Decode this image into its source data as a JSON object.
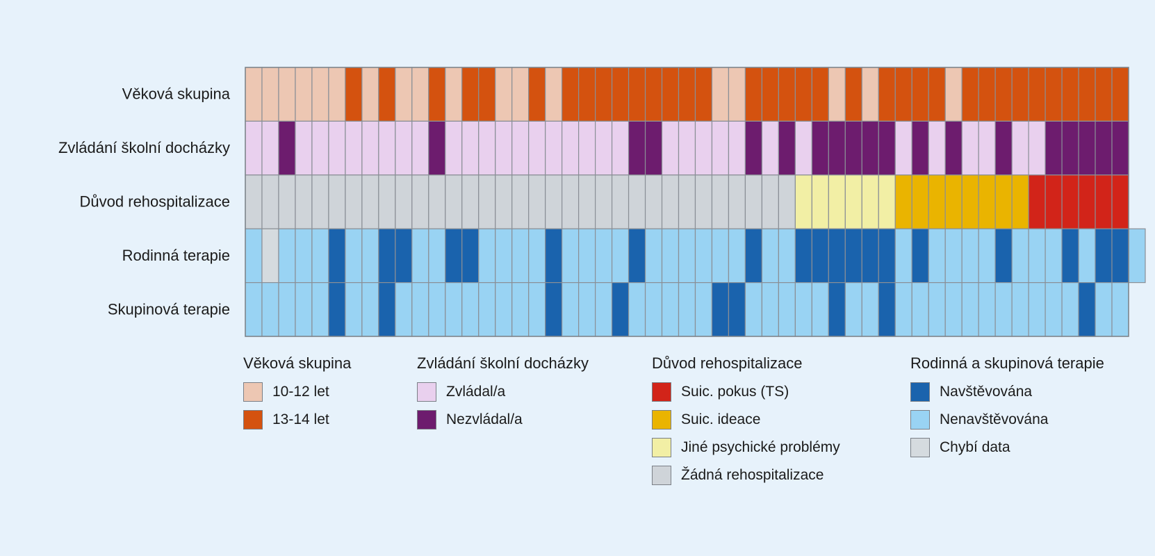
{
  "chart_data": {
    "type": "heatmap",
    "rows": [
      {
        "label": "Věková skupina",
        "legend_group": 0,
        "cells": [
          "10-12 let",
          "10-12 let",
          "10-12 let",
          "10-12 let",
          "10-12 let",
          "10-12 let",
          "13-14 let",
          "10-12 let",
          "13-14 let",
          "10-12 let",
          "10-12 let",
          "13-14 let",
          "10-12 let",
          "13-14 let",
          "13-14 let",
          "10-12 let",
          "10-12 let",
          "13-14 let",
          "10-12 let",
          "13-14 let",
          "13-14 let",
          "13-14 let",
          "13-14 let",
          "13-14 let",
          "13-14 let",
          "13-14 let",
          "13-14 let",
          "13-14 let",
          "10-12 let",
          "10-12 let",
          "13-14 let",
          "13-14 let",
          "13-14 let",
          "13-14 let",
          "13-14 let",
          "10-12 let",
          "13-14 let",
          "10-12 let",
          "13-14 let",
          "13-14 let",
          "13-14 let",
          "13-14 let",
          "10-12 let",
          "13-14 let",
          "13-14 let",
          "13-14 let",
          "13-14 let",
          "13-14 let",
          "13-14 let",
          "13-14 let",
          "13-14 let",
          "13-14 let",
          "13-14 let"
        ]
      },
      {
        "label": "Zvládání školní docházky",
        "legend_group": 1,
        "cells": [
          "Zvládal/a",
          "Zvládal/a",
          "Nezvládal/a",
          "Zvládal/a",
          "Zvládal/a",
          "Zvládal/a",
          "Zvládal/a",
          "Zvládal/a",
          "Zvládal/a",
          "Zvládal/a",
          "Zvládal/a",
          "Nezvládal/a",
          "Zvládal/a",
          "Zvládal/a",
          "Zvládal/a",
          "Zvládal/a",
          "Zvládal/a",
          "Zvládal/a",
          "Zvládal/a",
          "Zvládal/a",
          "Zvládal/a",
          "Zvládal/a",
          "Zvládal/a",
          "Nezvládal/a",
          "Nezvládal/a",
          "Zvládal/a",
          "Zvládal/a",
          "Zvládal/a",
          "Zvládal/a",
          "Zvládal/a",
          "Nezvládal/a",
          "Zvládal/a",
          "Nezvládal/a",
          "Zvládal/a",
          "Nezvládal/a",
          "Nezvládal/a",
          "Nezvládal/a",
          "Nezvládal/a",
          "Nezvládal/a",
          "Zvládal/a",
          "Nezvládal/a",
          "Zvládal/a",
          "Nezvládal/a",
          "Zvládal/a",
          "Zvládal/a",
          "Nezvládal/a",
          "Zvládal/a",
          "Zvládal/a",
          "Nezvládal/a",
          "Nezvládal/a",
          "Nezvládal/a",
          "Nezvládal/a",
          "Nezvládal/a"
        ]
      },
      {
        "label": "Důvod rehospitalizace",
        "legend_group": 2,
        "cells": [
          "Žádná rehospitalizace",
          "Žádná rehospitalizace",
          "Žádná rehospitalizace",
          "Žádná rehospitalizace",
          "Žádná rehospitalizace",
          "Žádná rehospitalizace",
          "Žádná rehospitalizace",
          "Žádná rehospitalizace",
          "Žádná rehospitalizace",
          "Žádná rehospitalizace",
          "Žádná rehospitalizace",
          "Žádná rehospitalizace",
          "Žádná rehospitalizace",
          "Žádná rehospitalizace",
          "Žádná rehospitalizace",
          "Žádná rehospitalizace",
          "Žádná rehospitalizace",
          "Žádná rehospitalizace",
          "Žádná rehospitalizace",
          "Žádná rehospitalizace",
          "Žádná rehospitalizace",
          "Žádná rehospitalizace",
          "Žádná rehospitalizace",
          "Žádná rehospitalizace",
          "Žádná rehospitalizace",
          "Žádná rehospitalizace",
          "Žádná rehospitalizace",
          "Žádná rehospitalizace",
          "Žádná rehospitalizace",
          "Žádná rehospitalizace",
          "Žádná rehospitalizace",
          "Žádná rehospitalizace",
          "Žádná rehospitalizace",
          "Jiné psychické problémy",
          "Jiné psychické problémy",
          "Jiné psychické problémy",
          "Jiné psychické problémy",
          "Jiné psychické problémy",
          "Jiné psychické problémy",
          "Suic. ideace",
          "Suic. ideace",
          "Suic. ideace",
          "Suic. ideace",
          "Suic. ideace",
          "Suic. ideace",
          "Suic. ideace",
          "Suic. ideace",
          "Suic. pokus (TS)",
          "Suic. pokus (TS)",
          "Suic. pokus (TS)",
          "Suic. pokus (TS)",
          "Suic. pokus (TS)",
          "Suic. pokus (TS)"
        ]
      },
      {
        "label": "Rodinná terapie",
        "legend_group": 3,
        "cells": [
          "Nenavštěvována",
          "Chybí data",
          "Nenavštěvována",
          "Nenavštěvována",
          "Nenavštěvována",
          "Navštěvována",
          "Nenavštěvována",
          "Nenavštěvována",
          "Navštěvována",
          "Navštěvována",
          "Nenavštěvována",
          "Nenavštěvována",
          "Navštěvována",
          "Navštěvována",
          "Nenavštěvována",
          "Nenavštěvována",
          "Nenavštěvována",
          "Nenavštěvována",
          "Navštěvována",
          "Nenavštěvována",
          "Nenavštěvována",
          "Nenavštěvována",
          "Nenavštěvována",
          "Navštěvována",
          "Nenavštěvována",
          "Nenavštěvována",
          "Nenavštěvována",
          "Nenavštěvována",
          "Nenavštěvována",
          "Nenavštěvována",
          "Navštěvována",
          "Nenavštěvována",
          "Nenavštěvována",
          "Navštěvována",
          "Navštěvována",
          "Navštěvována",
          "Navštěvována",
          "Navštěvována",
          "Navštěvována",
          "Nenavštěvována",
          "Navštěvována",
          "Nenavštěvována",
          "Nenavštěvována",
          "Nenavštěvována",
          "Nenavštěvována",
          "Navštěvována",
          "Nenavštěvována",
          "Nenavštěvována",
          "Nenavštěvována",
          "Navštěvována",
          "Nenavštěvována",
          "Navštěvována",
          "Navštěvována",
          "Nenavštěvována"
        ]
      },
      {
        "label": "Skupinová terapie",
        "legend_group": 3,
        "cells": [
          "Nenavštěvována",
          "Nenavštěvována",
          "Nenavštěvována",
          "Nenavštěvována",
          "Nenavštěvována",
          "Navštěvována",
          "Nenavštěvována",
          "Nenavštěvována",
          "Navštěvována",
          "Nenavštěvována",
          "Nenavštěvována",
          "Nenavštěvována",
          "Nenavštěvována",
          "Nenavštěvována",
          "Nenavštěvována",
          "Nenavštěvována",
          "Nenavštěvována",
          "Nenavštěvována",
          "Navštěvována",
          "Nenavštěvována",
          "Nenavštěvována",
          "Nenavštěvována",
          "Navštěvována",
          "Nenavštěvována",
          "Nenavštěvována",
          "Nenavštěvována",
          "Nenavštěvována",
          "Nenavštěvována",
          "Navštěvována",
          "Navštěvována",
          "Nenavštěvována",
          "Nenavštěvována",
          "Nenavštěvována",
          "Nenavštěvována",
          "Nenavštěvována",
          "Navštěvována",
          "Nenavštěvována",
          "Nenavštěvována",
          "Navštěvována",
          "Nenavštěvována",
          "Nenavštěvována",
          "Nenavštěvována",
          "Nenavštěvována",
          "Nenavštěvována",
          "Nenavštěvována",
          "Nenavštěvována",
          "Nenavštěvována",
          "Nenavštěvována",
          "Nenavštěvována",
          "Nenavštěvována",
          "Navštěvována",
          "Nenavštěvována",
          "Nenavštěvována"
        ]
      }
    ],
    "legend": [
      {
        "title": "Věková skupina",
        "items": [
          {
            "label": "10-12 let",
            "color": "#edc7b3"
          },
          {
            "label": "13-14 let",
            "color": "#d4520f"
          }
        ]
      },
      {
        "title": "Zvládání školní docházky",
        "items": [
          {
            "label": "Zvládal/a",
            "color": "#e9d0ee"
          },
          {
            "label": "Nezvládal/a",
            "color": "#6d1c6e"
          }
        ]
      },
      {
        "title": "Důvod rehospitalizace",
        "items": [
          {
            "label": "Suic. pokus (TS)",
            "color": "#d22419"
          },
          {
            "label": "Suic. ideace",
            "color": "#eab400"
          },
          {
            "label": "Jiné psychické problémy",
            "color": "#f2efa5"
          },
          {
            "label": "Žádná rehospitalizace",
            "color": "#cfd4d9"
          }
        ]
      },
      {
        "title": "Rodinná a skupinová terapie",
        "items": [
          {
            "label": "Navštěvována",
            "color": "#1a63ad"
          },
          {
            "label": "Nenavštěvována",
            "color": "#99d3f3"
          },
          {
            "label": "Chybí data",
            "color": "#d5dbdf"
          }
        ]
      }
    ]
  }
}
